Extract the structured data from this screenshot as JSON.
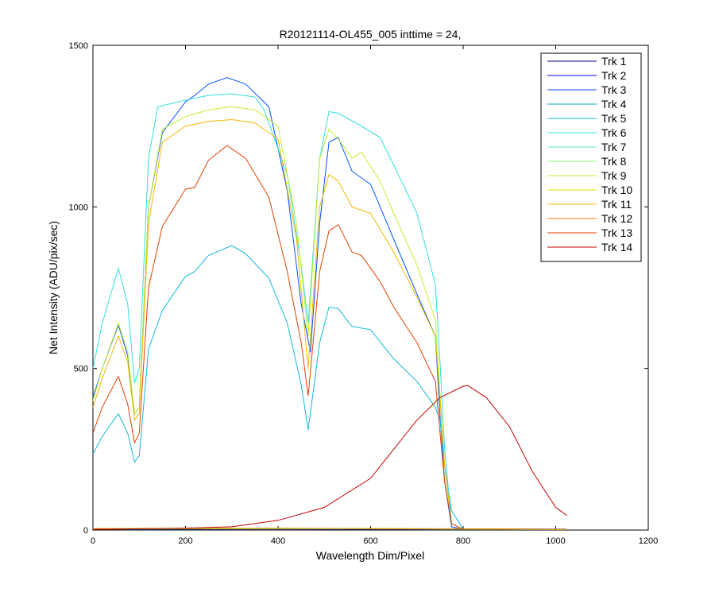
{
  "chart_data": {
    "type": "line",
    "title": "R20121114-OL455_005 inttime = 24,",
    "xlabel": "Wavelength Dim/Pixel",
    "ylabel": "Net Intensity (ADU/pix/sec)",
    "xlim": [
      0,
      1200
    ],
    "ylim": [
      0,
      1500
    ],
    "xticks": [
      0,
      200,
      400,
      600,
      800,
      1000,
      1200
    ],
    "yticks": [
      0,
      500,
      1000,
      1500
    ],
    "grid": false,
    "legend_position": "top-right",
    "series": [
      {
        "name": "Trk 1",
        "color": "#00008f",
        "x": [
          0,
          400,
          800,
          1024
        ],
        "y": [
          2,
          3,
          2,
          2
        ]
      },
      {
        "name": "Trk 2",
        "color": "#0000ef",
        "x": [
          0,
          400,
          800,
          1024
        ],
        "y": [
          4,
          5,
          3,
          3
        ]
      },
      {
        "name": "Trk 3",
        "color": "#0050ff",
        "x": [
          0,
          0,
          20,
          55,
          75,
          90,
          100,
          120,
          150,
          200,
          220,
          250,
          290,
          330,
          380,
          420,
          450,
          470,
          490,
          510,
          530,
          560,
          600,
          650,
          700,
          740,
          750,
          760,
          775,
          800
        ],
        "y": [
          410,
          410,
          500,
          635,
          540,
          360,
          380,
          1000,
          1230,
          1325,
          1345,
          1380,
          1400,
          1380,
          1310,
          1050,
          700,
          550,
          950,
          1200,
          1215,
          1110,
          1070,
          900,
          730,
          600,
          350,
          150,
          10,
          2
        ]
      },
      {
        "name": "Trk 4",
        "color": "#00a0c0",
        "x": [
          0,
          400,
          800,
          1024
        ],
        "y": [
          3,
          5,
          3,
          2
        ]
      },
      {
        "name": "Trk 5",
        "color": "#10b8d8",
        "x": [
          0,
          20,
          55,
          75,
          90,
          100,
          120,
          150,
          200,
          220,
          250,
          300,
          330,
          380,
          420,
          450,
          465,
          490,
          510,
          530,
          560,
          600,
          650,
          700,
          740,
          750,
          760,
          775,
          800
        ],
        "y": [
          235,
          290,
          360,
          300,
          210,
          230,
          560,
          680,
          785,
          800,
          850,
          880,
          855,
          780,
          640,
          450,
          310,
          580,
          690,
          685,
          630,
          620,
          530,
          460,
          380,
          340,
          200,
          60,
          2
        ]
      },
      {
        "name": "Trk 6",
        "color": "#30e0e0",
        "x": [
          0,
          20,
          55,
          75,
          90,
          100,
          120,
          140,
          200,
          250,
          300,
          350,
          370,
          420,
          450,
          465,
          490,
          510,
          530,
          580,
          620,
          650,
          700,
          740,
          750,
          760,
          775,
          800
        ],
        "y": [
          500,
          640,
          810,
          700,
          455,
          500,
          1150,
          1310,
          1330,
          1345,
          1350,
          1340,
          1300,
          1100,
          820,
          640,
          1150,
          1295,
          1290,
          1250,
          1215,
          1130,
          980,
          760,
          520,
          250,
          20,
          2
        ]
      },
      {
        "name": "Trk 7",
        "color": "#50f0c0",
        "x": [
          0,
          400,
          800,
          1024
        ],
        "y": [
          3,
          4,
          3,
          2
        ]
      },
      {
        "name": "Trk 8",
        "color": "#90f080",
        "x": [
          0,
          400,
          800,
          1024
        ],
        "y": [
          4,
          5,
          3,
          2
        ]
      },
      {
        "name": "Trk 9",
        "color": "#c0f030",
        "x": [
          0,
          20,
          55,
          75,
          90,
          100,
          120,
          150,
          200,
          250,
          300,
          350,
          400,
          440,
          465,
          490,
          510,
          530,
          560,
          580,
          620,
          650,
          700,
          740,
          750,
          760,
          775,
          800
        ],
        "y": [
          400,
          500,
          640,
          550,
          360,
          380,
          1000,
          1240,
          1280,
          1300,
          1310,
          1300,
          1250,
          950,
          600,
          1150,
          1240,
          1210,
          1150,
          1170,
          1080,
          980,
          820,
          650,
          420,
          200,
          20,
          2
        ]
      },
      {
        "name": "Trk 10",
        "color": "#e0e000",
        "x": [
          0,
          400,
          800,
          1024
        ],
        "y": [
          5,
          6,
          3,
          2
        ]
      },
      {
        "name": "Trk 11",
        "color": "#f0b800",
        "x": [
          0,
          20,
          55,
          75,
          90,
          100,
          120,
          150,
          200,
          250,
          300,
          350,
          400,
          440,
          465,
          490,
          510,
          530,
          560,
          600,
          650,
          700,
          740,
          750,
          760,
          775,
          800
        ],
        "y": [
          380,
          470,
          600,
          520,
          340,
          360,
          950,
          1200,
          1250,
          1265,
          1270,
          1260,
          1210,
          900,
          500,
          1000,
          1100,
          1080,
          1000,
          980,
          860,
          720,
          600,
          400,
          200,
          20,
          2
        ]
      },
      {
        "name": "Trk 12",
        "color": "#f08000",
        "x": [
          0,
          400,
          800,
          860,
          1024
        ],
        "y": [
          4,
          5,
          4,
          4,
          2
        ]
      },
      {
        "name": "Trk 13",
        "color": "#e04000",
        "x": [
          0,
          20,
          55,
          75,
          90,
          100,
          120,
          150,
          200,
          220,
          250,
          290,
          330,
          380,
          420,
          450,
          465,
          490,
          510,
          530,
          560,
          580,
          620,
          650,
          700,
          740,
          750,
          760,
          775,
          800
        ],
        "y": [
          300,
          380,
          475,
          390,
          270,
          300,
          750,
          940,
          1055,
          1060,
          1145,
          1190,
          1150,
          1030,
          800,
          580,
          415,
          800,
          925,
          945,
          860,
          850,
          770,
          690,
          580,
          460,
          300,
          150,
          20,
          2
        ]
      },
      {
        "name": "Trk 14",
        "color": "#c00000",
        "x": [
          0,
          100,
          200,
          300,
          400,
          500,
          600,
          650,
          700,
          750,
          800,
          810,
          850,
          900,
          950,
          1000,
          1024
        ],
        "y": [
          2,
          4,
          6,
          10,
          30,
          70,
          160,
          250,
          340,
          410,
          445,
          447,
          410,
          320,
          180,
          70,
          45
        ]
      }
    ]
  }
}
